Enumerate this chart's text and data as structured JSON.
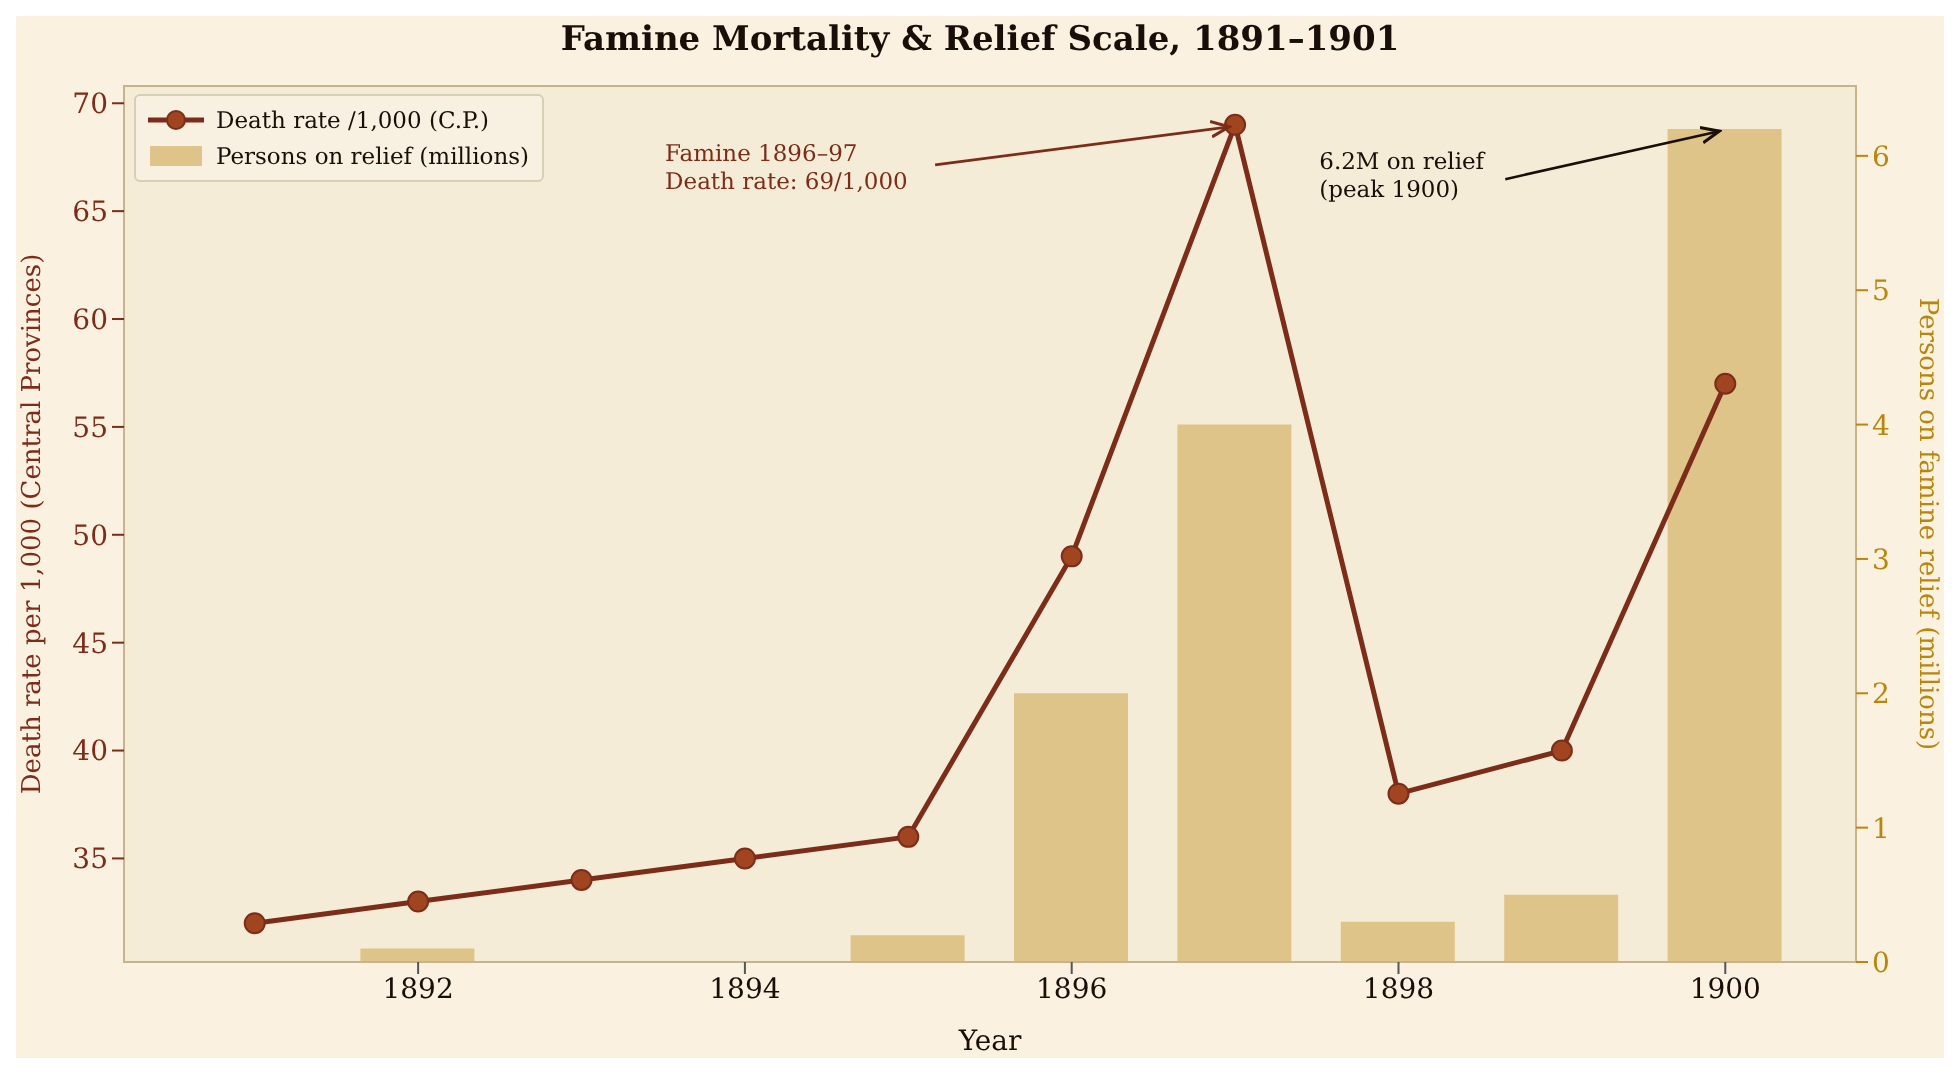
{
  "chart_data": {
    "type": "line",
    "title": "Famine Mortality & Relief Scale, 1891–1901",
    "xlabel": "Year",
    "ylabel": "Death rate per 1,000 (Central Provinces)",
    "y2label": "Persons on famine relief (millions)",
    "x": [
      1891,
      1892,
      1893,
      1894,
      1895,
      1896,
      1897,
      1898,
      1899,
      1900
    ],
    "series": [
      {
        "name": "Death rate /1,000 (C.P.)",
        "color": "#7b2d1a",
        "values": [
          32,
          33,
          34,
          35,
          36,
          49,
          69,
          38,
          40,
          57
        ]
      },
      {
        "name": "Persons on relief (millions)",
        "type": "bar",
        "axis": "y2",
        "color": "#dfc48a",
        "values": [
          0,
          0.1,
          0,
          0,
          0.2,
          2.0,
          4.0,
          0.3,
          0.5,
          6.2
        ]
      }
    ],
    "xlim": [
      1890.2,
      1900.8
    ],
    "xticks": [
      1892,
      1894,
      1896,
      1898,
      1900
    ],
    "ylim": [
      30.2,
      70.8
    ],
    "yticks": [
      35,
      40,
      45,
      50,
      55,
      60,
      65,
      70
    ],
    "y2lim": [
      0,
      6.52
    ],
    "y2ticks": [
      0,
      1,
      2,
      3,
      4,
      5,
      6
    ],
    "annotations": [
      {
        "text": "Famine 1896–97\nDeath rate: 69/1,000",
        "x": 1897,
        "y": 69
      },
      {
        "text": "6.2M on relief\n(peak 1900)",
        "x": 1900,
        "y": 68.8
      }
    ],
    "legend": "top left",
    "marker": "circle",
    "line_style": "solid"
  }
}
